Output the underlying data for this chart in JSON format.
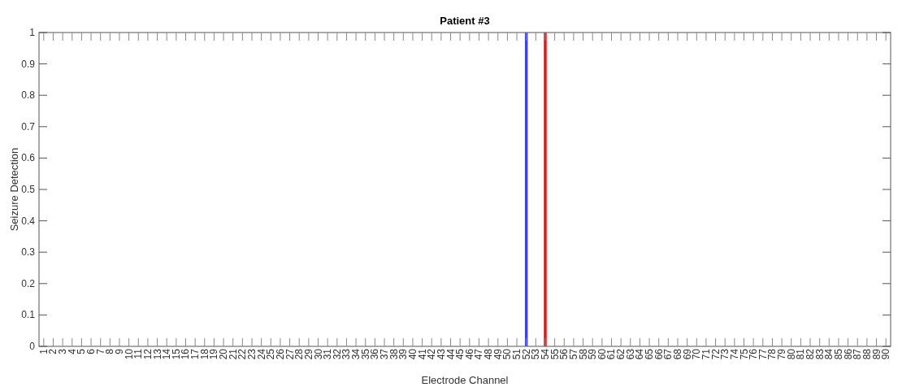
{
  "chart_data": {
    "type": "bar",
    "title": "Patient #3",
    "xlabel": "Electrode Channel",
    "ylabel": "Seizure Detection",
    "categories": [
      "1",
      "2",
      "3",
      "4",
      "5",
      "6",
      "7",
      "8",
      "9",
      "10",
      "11",
      "12",
      "13",
      "14",
      "15",
      "16",
      "17",
      "18",
      "19",
      "20",
      "21",
      "22",
      "23",
      "24",
      "25",
      "26",
      "27",
      "28",
      "29",
      "30",
      "31",
      "32",
      "33",
      "34",
      "35",
      "36",
      "37",
      "38",
      "39",
      "40",
      "41",
      "42",
      "43",
      "44",
      "45",
      "46",
      "47",
      "48",
      "49",
      "50",
      "51",
      "52",
      "53",
      "54",
      "55",
      "56",
      "57",
      "58",
      "59",
      "60",
      "61",
      "62",
      "63",
      "64",
      "65",
      "66",
      "67",
      "68",
      "69",
      "70",
      "71",
      "72",
      "73",
      "74",
      "75",
      "76",
      "77",
      "78",
      "79",
      "80",
      "81",
      "82",
      "83",
      "84",
      "85",
      "86",
      "87",
      "88",
      "89",
      "90"
    ],
    "values": [
      0,
      0,
      0,
      0,
      0,
      0,
      0,
      0,
      0,
      0,
      0,
      0,
      0,
      0,
      0,
      0,
      0,
      0,
      0,
      0,
      0,
      0,
      0,
      0,
      0,
      0,
      0,
      0,
      0,
      0,
      0,
      0,
      0,
      0,
      0,
      0,
      0,
      0,
      0,
      0,
      0,
      0,
      0,
      0,
      0,
      0,
      0,
      0,
      0,
      0,
      0,
      1,
      0,
      1,
      0,
      0,
      0,
      0,
      0,
      0,
      0,
      0,
      0,
      0,
      0,
      0,
      0,
      0,
      0,
      0,
      0,
      0,
      0,
      0,
      0,
      0,
      0,
      0,
      0,
      0,
      0,
      0,
      0,
      0,
      0,
      0,
      0,
      0,
      0,
      0
    ],
    "colors": [
      "#4040f0",
      "#4040f0",
      "#4040f0",
      "#4040f0",
      "#4040f0",
      "#4040f0",
      "#4040f0",
      "#4040f0",
      "#4040f0",
      "#4040f0",
      "#4040f0",
      "#4040f0",
      "#4040f0",
      "#4040f0",
      "#4040f0",
      "#4040f0",
      "#4040f0",
      "#4040f0",
      "#4040f0",
      "#4040f0",
      "#4040f0",
      "#4040f0",
      "#4040f0",
      "#4040f0",
      "#4040f0",
      "#4040f0",
      "#4040f0",
      "#4040f0",
      "#4040f0",
      "#4040f0",
      "#4040f0",
      "#4040f0",
      "#4040f0",
      "#4040f0",
      "#4040f0",
      "#4040f0",
      "#4040f0",
      "#4040f0",
      "#4040f0",
      "#4040f0",
      "#4040f0",
      "#4040f0",
      "#4040f0",
      "#4040f0",
      "#4040f0",
      "#4040f0",
      "#4040f0",
      "#4040f0",
      "#4040f0",
      "#4040f0",
      "#4040f0",
      "#4040f0",
      "#4040f0",
      "#ee1111",
      "#4040f0",
      "#4040f0",
      "#4040f0",
      "#4040f0",
      "#4040f0",
      "#4040f0",
      "#4040f0",
      "#4040f0",
      "#4040f0",
      "#4040f0",
      "#4040f0",
      "#4040f0",
      "#4040f0",
      "#4040f0",
      "#4040f0",
      "#4040f0",
      "#4040f0",
      "#4040f0",
      "#4040f0",
      "#4040f0",
      "#4040f0",
      "#4040f0",
      "#4040f0",
      "#4040f0",
      "#4040f0",
      "#4040f0",
      "#4040f0",
      "#4040f0",
      "#4040f0",
      "#4040f0",
      "#4040f0",
      "#4040f0",
      "#4040f0",
      "#4040f0",
      "#4040f0",
      "#4040f0"
    ],
    "ylim": [
      0,
      1
    ],
    "yticks": [
      0,
      0.1,
      0.2,
      0.3,
      0.4,
      0.5,
      0.6,
      0.7,
      0.8,
      0.9,
      1
    ],
    "grid": false
  }
}
